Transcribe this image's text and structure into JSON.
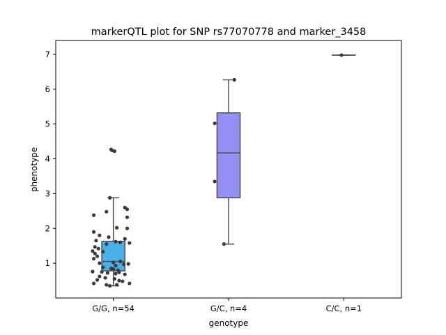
{
  "chart_data": {
    "type": "box",
    "title": "markerQTL plot for SNP rs77070778 and marker_3458",
    "xlabel": "genotype",
    "ylabel": "phenotype",
    "ylim": [
      0,
      7.4
    ],
    "yticks": [
      1,
      2,
      3,
      4,
      5,
      6,
      7
    ],
    "grid": false,
    "categories": [
      "G/G, n=54",
      "G/C, n=4",
      "C/C, n=1"
    ],
    "boxes": [
      {
        "category": "G/G, n=54",
        "color": "#4cb0e8",
        "whisker_low": 0.35,
        "q1": 0.78,
        "median": 1.05,
        "q3": 1.63,
        "whisker_high": 2.88,
        "points": [
          {
            "j": -0.02,
            "y": 4.27
          },
          {
            "j": 0.01,
            "y": 4.22
          },
          {
            "j": -0.01,
            "y": 4.24
          },
          {
            "j": -0.03,
            "y": 2.88
          },
          {
            "j": 0.1,
            "y": 2.6
          },
          {
            "j": 0.12,
            "y": 2.55
          },
          {
            "j": -0.06,
            "y": 2.48
          },
          {
            "j": -0.17,
            "y": 2.38
          },
          {
            "j": 0.12,
            "y": 2.32
          },
          {
            "j": 0.03,
            "y": 2.02
          },
          {
            "j": 0.12,
            "y": 2.0
          },
          {
            "j": -0.17,
            "y": 1.9
          },
          {
            "j": -0.12,
            "y": 1.8
          },
          {
            "j": -0.04,
            "y": 1.75
          },
          {
            "j": 0.1,
            "y": 1.7
          },
          {
            "j": -0.15,
            "y": 1.65
          },
          {
            "j": 0.02,
            "y": 1.62
          },
          {
            "j": 0.06,
            "y": 1.6
          },
          {
            "j": 0.14,
            "y": 1.58
          },
          {
            "j": -0.06,
            "y": 1.55
          },
          {
            "j": -0.16,
            "y": 1.47
          },
          {
            "j": -0.13,
            "y": 1.42
          },
          {
            "j": -0.18,
            "y": 1.35
          },
          {
            "j": -0.09,
            "y": 1.33
          },
          {
            "j": -0.16,
            "y": 1.28
          },
          {
            "j": -0.14,
            "y": 1.2
          },
          {
            "j": -0.17,
            "y": 1.13
          },
          {
            "j": 0.06,
            "y": 1.05
          },
          {
            "j": 0.0,
            "y": 1.02
          },
          {
            "j": -0.12,
            "y": 1.0
          },
          {
            "j": 0.13,
            "y": 0.98
          },
          {
            "j": 0.09,
            "y": 0.97
          },
          {
            "j": 0.02,
            "y": 0.93
          },
          {
            "j": -0.09,
            "y": 0.88
          },
          {
            "j": -0.02,
            "y": 0.85
          },
          {
            "j": 0.0,
            "y": 0.83
          },
          {
            "j": 0.04,
            "y": 0.8
          },
          {
            "j": -0.18,
            "y": 0.76
          },
          {
            "j": -0.1,
            "y": 0.75
          },
          {
            "j": -0.05,
            "y": 0.72
          },
          {
            "j": 0.05,
            "y": 0.74
          },
          {
            "j": 0.02,
            "y": 0.7
          },
          {
            "j": 0.1,
            "y": 0.68
          },
          {
            "j": -0.12,
            "y": 0.62
          },
          {
            "j": -0.07,
            "y": 0.58
          },
          {
            "j": 0.01,
            "y": 0.55
          },
          {
            "j": -0.14,
            "y": 0.52
          },
          {
            "j": 0.05,
            "y": 0.5
          },
          {
            "j": 0.08,
            "y": 0.48
          },
          {
            "j": -0.17,
            "y": 0.42
          },
          {
            "j": 0.14,
            "y": 0.42
          },
          {
            "j": -0.06,
            "y": 0.38
          },
          {
            "j": 0.03,
            "y": 0.38
          },
          {
            "j": -0.03,
            "y": 0.35
          }
        ]
      },
      {
        "category": "G/C, n=4",
        "color": "#9590f5",
        "whisker_low": 1.55,
        "q1": 2.88,
        "median": 4.17,
        "q3": 5.32,
        "whisker_high": 6.27,
        "points": [
          {
            "j": 0.05,
            "y": 6.27
          },
          {
            "j": -0.12,
            "y": 5.02
          },
          {
            "j": -0.12,
            "y": 3.35
          },
          {
            "j": -0.04,
            "y": 1.55
          }
        ]
      },
      {
        "category": "C/C, n=1",
        "color": "#a28fe0",
        "whisker_low": 6.98,
        "q1": 6.98,
        "median": 6.98,
        "q3": 6.98,
        "whisker_high": 6.98,
        "points": [
          {
            "j": -0.02,
            "y": 6.98
          }
        ]
      }
    ]
  }
}
